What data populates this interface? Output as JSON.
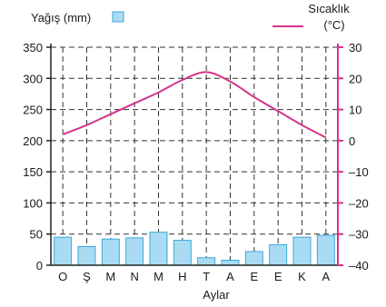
{
  "chart_data": {
    "type": "bar+line",
    "categories": [
      "O",
      "Ş",
      "M",
      "N",
      "M",
      "H",
      "T",
      "A",
      "E",
      "E",
      "K",
      "A"
    ],
    "xlabel": "Aylar",
    "series": [
      {
        "name": "Yağış (mm)",
        "type": "bar",
        "axis": "left",
        "values": [
          45,
          30,
          42,
          44,
          53,
          40,
          12,
          8,
          22,
          33,
          45,
          48
        ],
        "color": "#a9dcf3",
        "stroke": "#3aa6d8"
      },
      {
        "name": "Sıcaklık (°C)",
        "type": "line",
        "axis": "right",
        "values": [
          2,
          5,
          8.5,
          12,
          15.5,
          19.5,
          22,
          19,
          14,
          9.5,
          5,
          1
        ],
        "color": "#d6338a"
      }
    ],
    "left_axis": {
      "ticks": [
        "350",
        "300",
        "250",
        "200",
        "150",
        "100",
        "50",
        "0"
      ],
      "min": 0,
      "max": 350
    },
    "right_axis": {
      "ticks": [
        "30",
        "20",
        "10",
        "0",
        "–10",
        "–20",
        "–30",
        "–40"
      ],
      "min": -40,
      "max": 30
    },
    "legend": {
      "precip_label": "Yağış (mm)",
      "temp_label_line1": "Sıcaklık",
      "temp_label_line2": "(°C)"
    },
    "grid": "dashed"
  }
}
